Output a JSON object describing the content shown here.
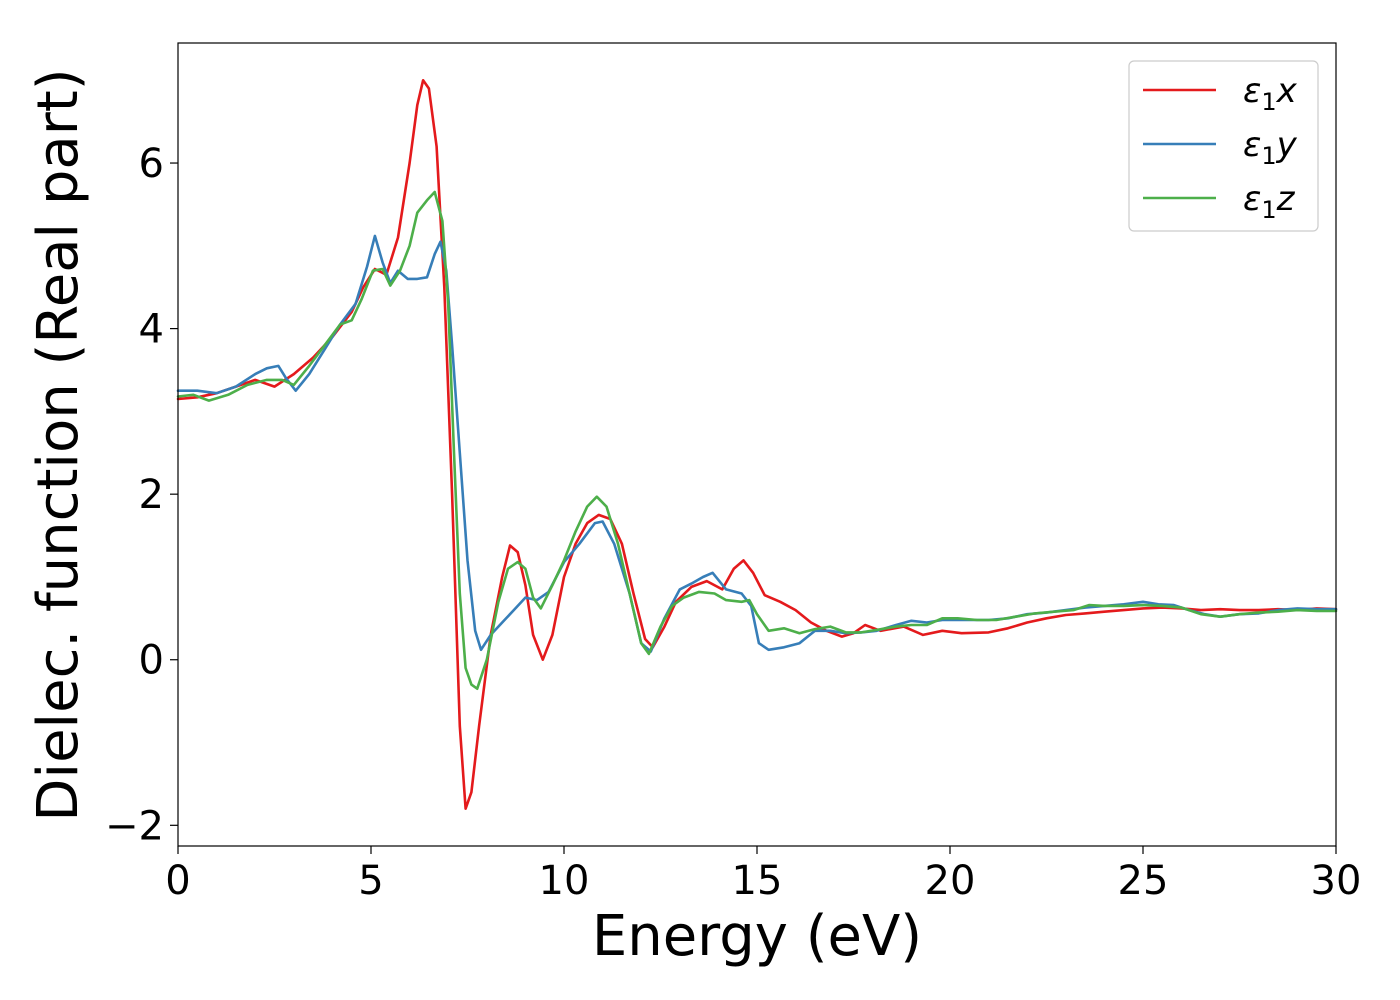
{
  "chart_data": {
    "type": "line",
    "title": "",
    "xlabel": "Energy (eV)",
    "ylabel": "Dielec. function (Real part)",
    "xlim": [
      0,
      30
    ],
    "ylim": [
      -2.25,
      7.45
    ],
    "xticks": [
      0,
      5,
      10,
      15,
      20,
      25,
      30
    ],
    "xtick_labels": [
      "0",
      "5",
      "10",
      "15",
      "20",
      "25",
      "30"
    ],
    "yticks": [
      -2,
      0,
      2,
      4,
      6
    ],
    "ytick_labels": [
      "−2",
      "0",
      "2",
      "4",
      "6"
    ],
    "grid": false,
    "legend_position": "top-right",
    "series": [
      {
        "name": "ε₁x",
        "legend_main": "ε",
        "legend_sub": "1",
        "legend_suffix": "x",
        "color": "#e41a1c",
        "points": [
          [
            0,
            3.15
          ],
          [
            0.5,
            3.17
          ],
          [
            1.0,
            3.22
          ],
          [
            1.5,
            3.3
          ],
          [
            2.0,
            3.38
          ],
          [
            2.5,
            3.3
          ],
          [
            3.0,
            3.45
          ],
          [
            3.5,
            3.65
          ],
          [
            4.0,
            3.9
          ],
          [
            4.5,
            4.2
          ],
          [
            4.8,
            4.5
          ],
          [
            5.1,
            4.72
          ],
          [
            5.4,
            4.65
          ],
          [
            5.7,
            5.1
          ],
          [
            6.0,
            6.0
          ],
          [
            6.2,
            6.7
          ],
          [
            6.35,
            7.0
          ],
          [
            6.5,
            6.9
          ],
          [
            6.7,
            6.2
          ],
          [
            6.9,
            4.5
          ],
          [
            7.1,
            2.0
          ],
          [
            7.3,
            -0.8
          ],
          [
            7.45,
            -1.8
          ],
          [
            7.6,
            -1.6
          ],
          [
            7.8,
            -0.8
          ],
          [
            8.1,
            0.3
          ],
          [
            8.4,
            1.0
          ],
          [
            8.6,
            1.38
          ],
          [
            8.8,
            1.3
          ],
          [
            9.0,
            0.9
          ],
          [
            9.2,
            0.3
          ],
          [
            9.45,
            0.0
          ],
          [
            9.7,
            0.3
          ],
          [
            10.0,
            1.0
          ],
          [
            10.3,
            1.4
          ],
          [
            10.6,
            1.65
          ],
          [
            10.9,
            1.75
          ],
          [
            11.2,
            1.7
          ],
          [
            11.5,
            1.4
          ],
          [
            11.8,
            0.8
          ],
          [
            12.1,
            0.25
          ],
          [
            12.3,
            0.15
          ],
          [
            12.6,
            0.4
          ],
          [
            12.9,
            0.7
          ],
          [
            13.3,
            0.88
          ],
          [
            13.7,
            0.95
          ],
          [
            14.1,
            0.85
          ],
          [
            14.4,
            1.1
          ],
          [
            14.65,
            1.2
          ],
          [
            14.9,
            1.05
          ],
          [
            15.2,
            0.78
          ],
          [
            15.6,
            0.7
          ],
          [
            16.0,
            0.6
          ],
          [
            16.4,
            0.45
          ],
          [
            16.8,
            0.35
          ],
          [
            17.2,
            0.28
          ],
          [
            17.5,
            0.32
          ],
          [
            17.8,
            0.42
          ],
          [
            18.2,
            0.35
          ],
          [
            18.8,
            0.4
          ],
          [
            19.3,
            0.3
          ],
          [
            19.8,
            0.35
          ],
          [
            20.3,
            0.32
          ],
          [
            21.0,
            0.33
          ],
          [
            21.5,
            0.38
          ],
          [
            22.0,
            0.45
          ],
          [
            22.5,
            0.5
          ],
          [
            23.0,
            0.54
          ],
          [
            23.5,
            0.56
          ],
          [
            24.0,
            0.58
          ],
          [
            24.5,
            0.6
          ],
          [
            25.0,
            0.62
          ],
          [
            25.5,
            0.63
          ],
          [
            26.0,
            0.62
          ],
          [
            26.5,
            0.6
          ],
          [
            27.0,
            0.61
          ],
          [
            27.5,
            0.6
          ],
          [
            28.0,
            0.6
          ],
          [
            28.5,
            0.61
          ],
          [
            29.0,
            0.6
          ],
          [
            29.5,
            0.62
          ],
          [
            30.0,
            0.61
          ]
        ]
      },
      {
        "name": "ε₁y",
        "legend_main": "ε",
        "legend_sub": "1",
        "legend_suffix": "y",
        "color": "#377eb8",
        "points": [
          [
            0,
            3.25
          ],
          [
            0.5,
            3.25
          ],
          [
            1.0,
            3.22
          ],
          [
            1.5,
            3.3
          ],
          [
            2.0,
            3.45
          ],
          [
            2.3,
            3.52
          ],
          [
            2.6,
            3.55
          ],
          [
            2.8,
            3.4
          ],
          [
            3.05,
            3.25
          ],
          [
            3.4,
            3.45
          ],
          [
            3.8,
            3.75
          ],
          [
            4.2,
            4.05
          ],
          [
            4.6,
            4.3
          ],
          [
            4.9,
            4.75
          ],
          [
            5.1,
            5.12
          ],
          [
            5.3,
            4.8
          ],
          [
            5.5,
            4.55
          ],
          [
            5.7,
            4.7
          ],
          [
            5.95,
            4.6
          ],
          [
            6.2,
            4.6
          ],
          [
            6.45,
            4.62
          ],
          [
            6.65,
            4.9
          ],
          [
            6.8,
            5.05
          ],
          [
            6.95,
            4.7
          ],
          [
            7.1,
            3.8
          ],
          [
            7.3,
            2.5
          ],
          [
            7.5,
            1.2
          ],
          [
            7.7,
            0.35
          ],
          [
            7.85,
            0.12
          ],
          [
            8.1,
            0.3
          ],
          [
            8.4,
            0.45
          ],
          [
            8.7,
            0.6
          ],
          [
            9.0,
            0.75
          ],
          [
            9.3,
            0.72
          ],
          [
            9.6,
            0.82
          ],
          [
            10.0,
            1.18
          ],
          [
            10.4,
            1.4
          ],
          [
            10.8,
            1.65
          ],
          [
            11.0,
            1.67
          ],
          [
            11.3,
            1.4
          ],
          [
            11.7,
            0.8
          ],
          [
            12.0,
            0.2
          ],
          [
            12.25,
            0.1
          ],
          [
            12.6,
            0.5
          ],
          [
            13.0,
            0.85
          ],
          [
            13.3,
            0.92
          ],
          [
            13.6,
            1.0
          ],
          [
            13.85,
            1.05
          ],
          [
            14.2,
            0.85
          ],
          [
            14.6,
            0.8
          ],
          [
            14.85,
            0.65
          ],
          [
            15.05,
            0.2
          ],
          [
            15.3,
            0.12
          ],
          [
            15.7,
            0.15
          ],
          [
            16.1,
            0.2
          ],
          [
            16.5,
            0.35
          ],
          [
            16.9,
            0.35
          ],
          [
            17.3,
            0.32
          ],
          [
            17.7,
            0.33
          ],
          [
            18.1,
            0.35
          ],
          [
            18.6,
            0.42
          ],
          [
            19.0,
            0.47
          ],
          [
            19.4,
            0.45
          ],
          [
            19.8,
            0.48
          ],
          [
            20.2,
            0.48
          ],
          [
            20.6,
            0.48
          ],
          [
            21.0,
            0.48
          ],
          [
            21.5,
            0.5
          ],
          [
            22.0,
            0.55
          ],
          [
            22.5,
            0.57
          ],
          [
            23.0,
            0.6
          ],
          [
            23.5,
            0.63
          ],
          [
            24.0,
            0.65
          ],
          [
            24.5,
            0.67
          ],
          [
            25.0,
            0.7
          ],
          [
            25.4,
            0.67
          ],
          [
            25.8,
            0.66
          ],
          [
            26.2,
            0.6
          ],
          [
            26.6,
            0.55
          ],
          [
            27.0,
            0.52
          ],
          [
            27.5,
            0.55
          ],
          [
            28.0,
            0.56
          ],
          [
            28.5,
            0.6
          ],
          [
            29.0,
            0.62
          ],
          [
            29.5,
            0.61
          ],
          [
            30.0,
            0.61
          ]
        ]
      },
      {
        "name": "ε₁z",
        "legend_main": "ε",
        "legend_sub": "1",
        "legend_suffix": "z",
        "color": "#4daf4a",
        "points": [
          [
            0,
            3.18
          ],
          [
            0.4,
            3.2
          ],
          [
            0.8,
            3.13
          ],
          [
            1.3,
            3.2
          ],
          [
            1.8,
            3.32
          ],
          [
            2.3,
            3.38
          ],
          [
            2.7,
            3.38
          ],
          [
            3.0,
            3.32
          ],
          [
            3.4,
            3.55
          ],
          [
            3.8,
            3.8
          ],
          [
            4.2,
            4.05
          ],
          [
            4.5,
            4.1
          ],
          [
            4.75,
            4.35
          ],
          [
            5.05,
            4.7
          ],
          [
            5.3,
            4.72
          ],
          [
            5.5,
            4.52
          ],
          [
            5.75,
            4.7
          ],
          [
            6.0,
            5.0
          ],
          [
            6.2,
            5.4
          ],
          [
            6.45,
            5.55
          ],
          [
            6.65,
            5.65
          ],
          [
            6.85,
            5.3
          ],
          [
            7.0,
            4.3
          ],
          [
            7.15,
            2.5
          ],
          [
            7.3,
            0.8
          ],
          [
            7.45,
            -0.1
          ],
          [
            7.6,
            -0.3
          ],
          [
            7.75,
            -0.35
          ],
          [
            8.0,
            0.0
          ],
          [
            8.3,
            0.7
          ],
          [
            8.55,
            1.1
          ],
          [
            8.8,
            1.18
          ],
          [
            9.0,
            1.1
          ],
          [
            9.2,
            0.75
          ],
          [
            9.4,
            0.62
          ],
          [
            9.7,
            0.9
          ],
          [
            10.0,
            1.2
          ],
          [
            10.3,
            1.55
          ],
          [
            10.6,
            1.85
          ],
          [
            10.85,
            1.97
          ],
          [
            11.1,
            1.85
          ],
          [
            11.4,
            1.4
          ],
          [
            11.7,
            0.8
          ],
          [
            12.0,
            0.2
          ],
          [
            12.2,
            0.07
          ],
          [
            12.5,
            0.4
          ],
          [
            12.8,
            0.65
          ],
          [
            13.1,
            0.75
          ],
          [
            13.5,
            0.82
          ],
          [
            13.9,
            0.8
          ],
          [
            14.2,
            0.72
          ],
          [
            14.6,
            0.7
          ],
          [
            14.8,
            0.72
          ],
          [
            15.0,
            0.55
          ],
          [
            15.3,
            0.35
          ],
          [
            15.7,
            0.38
          ],
          [
            16.1,
            0.32
          ],
          [
            16.5,
            0.37
          ],
          [
            16.9,
            0.4
          ],
          [
            17.3,
            0.33
          ],
          [
            17.7,
            0.33
          ],
          [
            18.1,
            0.36
          ],
          [
            18.6,
            0.4
          ],
          [
            19.0,
            0.42
          ],
          [
            19.4,
            0.42
          ],
          [
            19.8,
            0.5
          ],
          [
            20.2,
            0.5
          ],
          [
            20.7,
            0.48
          ],
          [
            21.2,
            0.48
          ],
          [
            21.7,
            0.52
          ],
          [
            22.2,
            0.56
          ],
          [
            22.7,
            0.58
          ],
          [
            23.2,
            0.6
          ],
          [
            23.6,
            0.66
          ],
          [
            24.0,
            0.65
          ],
          [
            24.5,
            0.65
          ],
          [
            25.0,
            0.66
          ],
          [
            25.5,
            0.65
          ],
          [
            26.0,
            0.63
          ],
          [
            26.5,
            0.55
          ],
          [
            27.0,
            0.52
          ],
          [
            27.5,
            0.55
          ],
          [
            28.0,
            0.57
          ],
          [
            28.5,
            0.58
          ],
          [
            29.0,
            0.6
          ],
          [
            29.5,
            0.59
          ],
          [
            30.0,
            0.59
          ]
        ]
      }
    ]
  }
}
